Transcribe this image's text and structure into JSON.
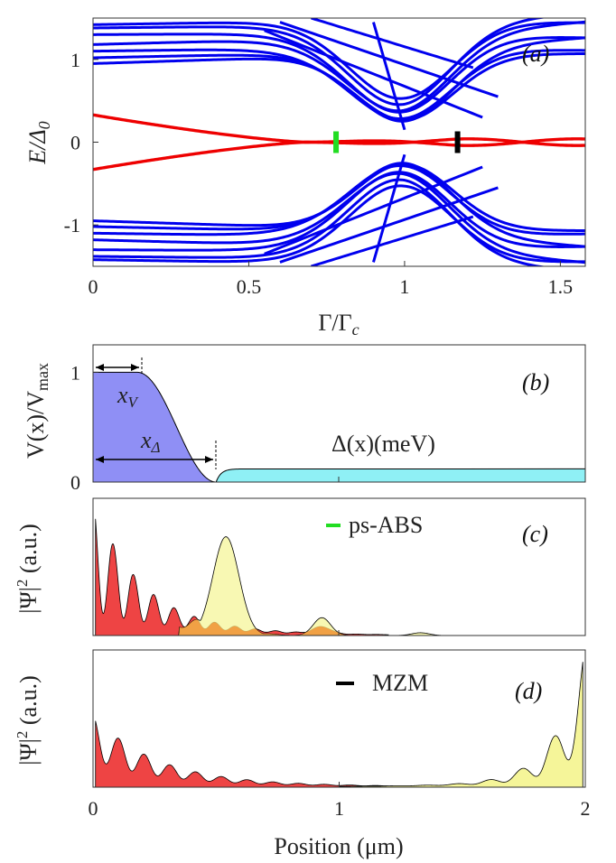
{
  "chart_data": [
    {
      "id": "a",
      "type": "line",
      "panel_label": "(a)",
      "xlabel": "Γ/Γ",
      "xlabel_sub": "c",
      "ylabel": "E/Δ",
      "ylabel_sub": "0",
      "xlim": [
        0,
        1.58
      ],
      "ylim": [
        -1.5,
        1.5
      ],
      "x_ticks": [
        0,
        0.5,
        1,
        1.5
      ],
      "x_tick_labels": [
        "0",
        "0.5",
        "1",
        "1.5"
      ],
      "y_ticks": [
        1,
        0,
        -1
      ],
      "y_tick_labels": [
        "1",
        "0",
        "-1"
      ],
      "colors": {
        "bulk": "#0000ee",
        "subgap": "#ee0000",
        "ps_abs": "#22dd22",
        "mzm": "#000000"
      },
      "markers": [
        {
          "name": "ps-ABS",
          "x": 0.78,
          "color": "#22dd22"
        },
        {
          "name": "MZM",
          "x": 1.17,
          "color": "#000000"
        }
      ],
      "subgap_state": {
        "E0": 0.33,
        "gamma_close": 0.68,
        "gamma_c": 1.0
      },
      "bulk_bands": [
        {
          "E0": 0.95,
          "slope": 0.12,
          "dip": 0.0
        },
        {
          "E0": 1.02,
          "slope": 0.08,
          "dip": 0.1
        },
        {
          "E0": 1.1,
          "slope": 0.05,
          "dip": 0.4
        },
        {
          "E0": 1.18,
          "slope": 0.1,
          "dip": 0.6
        },
        {
          "E0": 1.3,
          "slope": 0.02,
          "dip": 0.75
        },
        {
          "E0": 1.38,
          "slope": 0.04,
          "dip": 0.95
        },
        {
          "E0": 1.42,
          "slope": 0.06,
          "dip": 1.1
        }
      ]
    },
    {
      "id": "b",
      "type": "area",
      "panel_label": "(b)",
      "ylabel": "V(x)/V",
      "ylabel_sub": "max",
      "xlim": [
        0,
        2
      ],
      "ylim": [
        0,
        1.25
      ],
      "y_ticks": [
        1,
        0
      ],
      "y_tick_labels": [
        "1",
        "0"
      ],
      "potential": {
        "plateau_end": 0.18,
        "decay_end": 0.5,
        "height": 1.0,
        "color": "#8f8ff5"
      },
      "gap": {
        "start": 0.5,
        "level": 0.12,
        "color": "#8ff0f5"
      },
      "annotations": {
        "xV": "x",
        "xV_sub": "V",
        "xD": "x",
        "xD_sub": "Δ",
        "gap_label": "Δ(x)(meV)"
      }
    },
    {
      "id": "c",
      "type": "area",
      "panel_label": "(c)",
      "ylabel": "|Ψ|",
      "ylabel_sup": "2",
      "ylabel_tail": " (a.u.)",
      "legend": {
        "label": "ps-ABS",
        "color": "#22dd22"
      },
      "series": [
        {
          "name": "red",
          "color": "#ee4444",
          "peak": 1.0
        },
        {
          "name": "yellow",
          "color": "#f5f599",
          "peak": 0.72
        }
      ]
    },
    {
      "id": "d",
      "type": "area",
      "panel_label": "(d)",
      "ylabel": "|Ψ|",
      "ylabel_sup": "2",
      "ylabel_tail": " (a.u.)",
      "legend": {
        "label": "MZM",
        "color": "#000000"
      },
      "xlabel": "Position (μm)",
      "x_ticks": [
        0,
        1,
        2
      ],
      "x_tick_labels": [
        "0",
        "1",
        "2"
      ],
      "xlim": [
        0,
        2
      ],
      "series": [
        {
          "name": "red",
          "color": "#ee4444",
          "peak": 0.5
        },
        {
          "name": "yellow",
          "color": "#f5f599",
          "peak": 1.0
        }
      ]
    }
  ]
}
